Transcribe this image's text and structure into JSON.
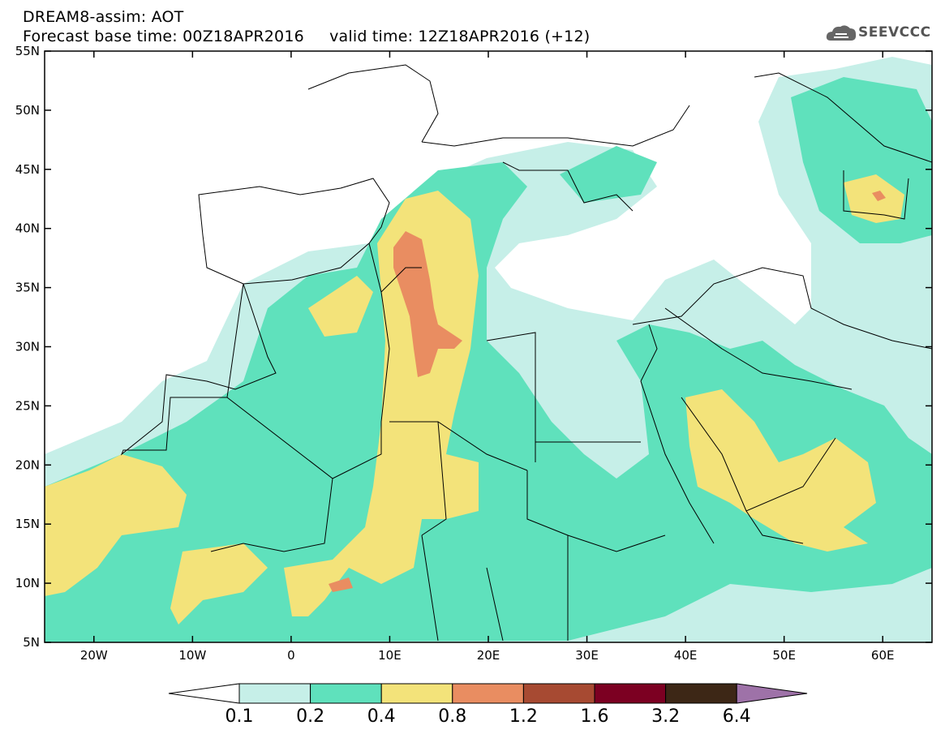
{
  "header": {
    "title": "DREAM8-assim: AOT",
    "base_time_line": "Forecast base time: 00Z18APR2016     valid time: 12Z18APR2016 (+12)"
  },
  "logo": {
    "text": "SEEVCCC",
    "icon": "cloud-icon"
  },
  "map": {
    "lat_labels": [
      "55N",
      "50N",
      "45N",
      "40N",
      "35N",
      "30N",
      "25N",
      "20N",
      "15N",
      "10N",
      "5N"
    ],
    "lon_labels": [
      "20W",
      "10W",
      "0",
      "10E",
      "20E",
      "30E",
      "40E",
      "50E",
      "60E"
    ],
    "lon_range": [
      -25,
      65
    ],
    "lat_range": [
      5,
      55
    ]
  },
  "colorbar": {
    "labels": [
      "0.1",
      "0.2",
      "0.4",
      "0.8",
      "1.2",
      "1.6",
      "3.2",
      "6.4"
    ],
    "colors": [
      "#ffffff",
      "#c6efe8",
      "#5fe1bc",
      "#f3e37a",
      "#e98d61",
      "#a74a32",
      "#7c0022",
      "#3d2716",
      "#9e72a8"
    ]
  },
  "palette": {
    "low": "#c6efe8",
    "mid": "#5fe1bc",
    "high": "#f3e37a",
    "vhigh": "#e98d61",
    "border": "#000000"
  }
}
